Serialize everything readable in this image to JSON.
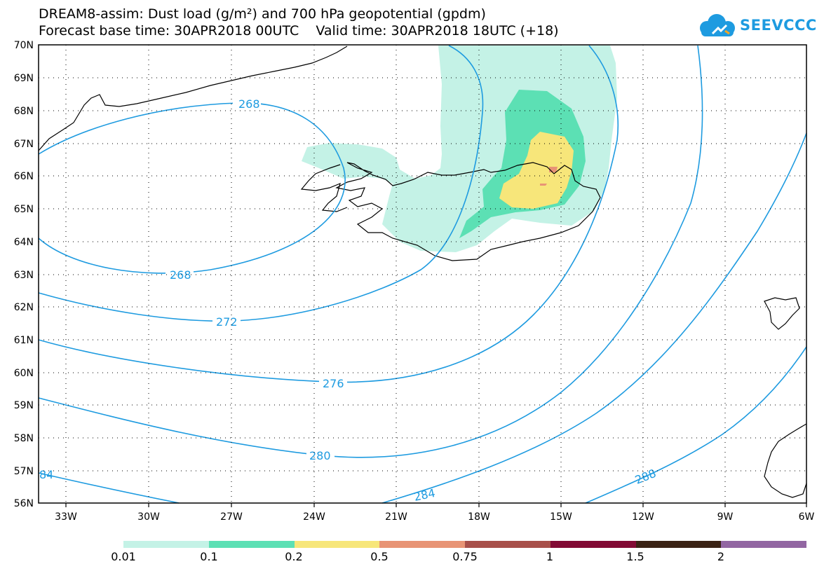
{
  "header": {
    "line1": "DREAM8-assim: Dust load (g/m²) and 700 hPa geopotential (gpdm)",
    "line2": "Forecast base time: 30APR2018 00UTC    Valid time: 30APR2018 18UTC (+18)"
  },
  "logo": {
    "text": "SEEVCCC",
    "icon": "cloud-icon",
    "color": "#1e9be0"
  },
  "map": {
    "lat_labels": [
      "70N",
      "69N",
      "68N",
      "67N",
      "66N",
      "65N",
      "64N",
      "63N",
      "62N",
      "61N",
      "60N",
      "59N",
      "58N",
      "57N",
      "56N"
    ],
    "lon_labels": [
      "33W",
      "30W",
      "27W",
      "24W",
      "21W",
      "18W",
      "15W",
      "12W",
      "9W",
      "6W"
    ],
    "contour_labels": {
      "c268a": "268",
      "c268b": "268",
      "c272": "272",
      "c276": "276",
      "c280": "280",
      "c284": "284",
      "c288": "288",
      "c84": "84"
    },
    "contour_color": "#1e9be0",
    "coast_color": "#000000"
  },
  "colorbar": {
    "colors": [
      "#c4f2e6",
      "#5ce0b4",
      "#f7e67a",
      "#e89475",
      "#a8504a",
      "#820a34",
      "#3a2214",
      "#9266a2"
    ],
    "labels": [
      "0.01",
      "0.1",
      "0.2",
      "0.5",
      "0.75",
      "1",
      "1.5",
      "2"
    ]
  }
}
